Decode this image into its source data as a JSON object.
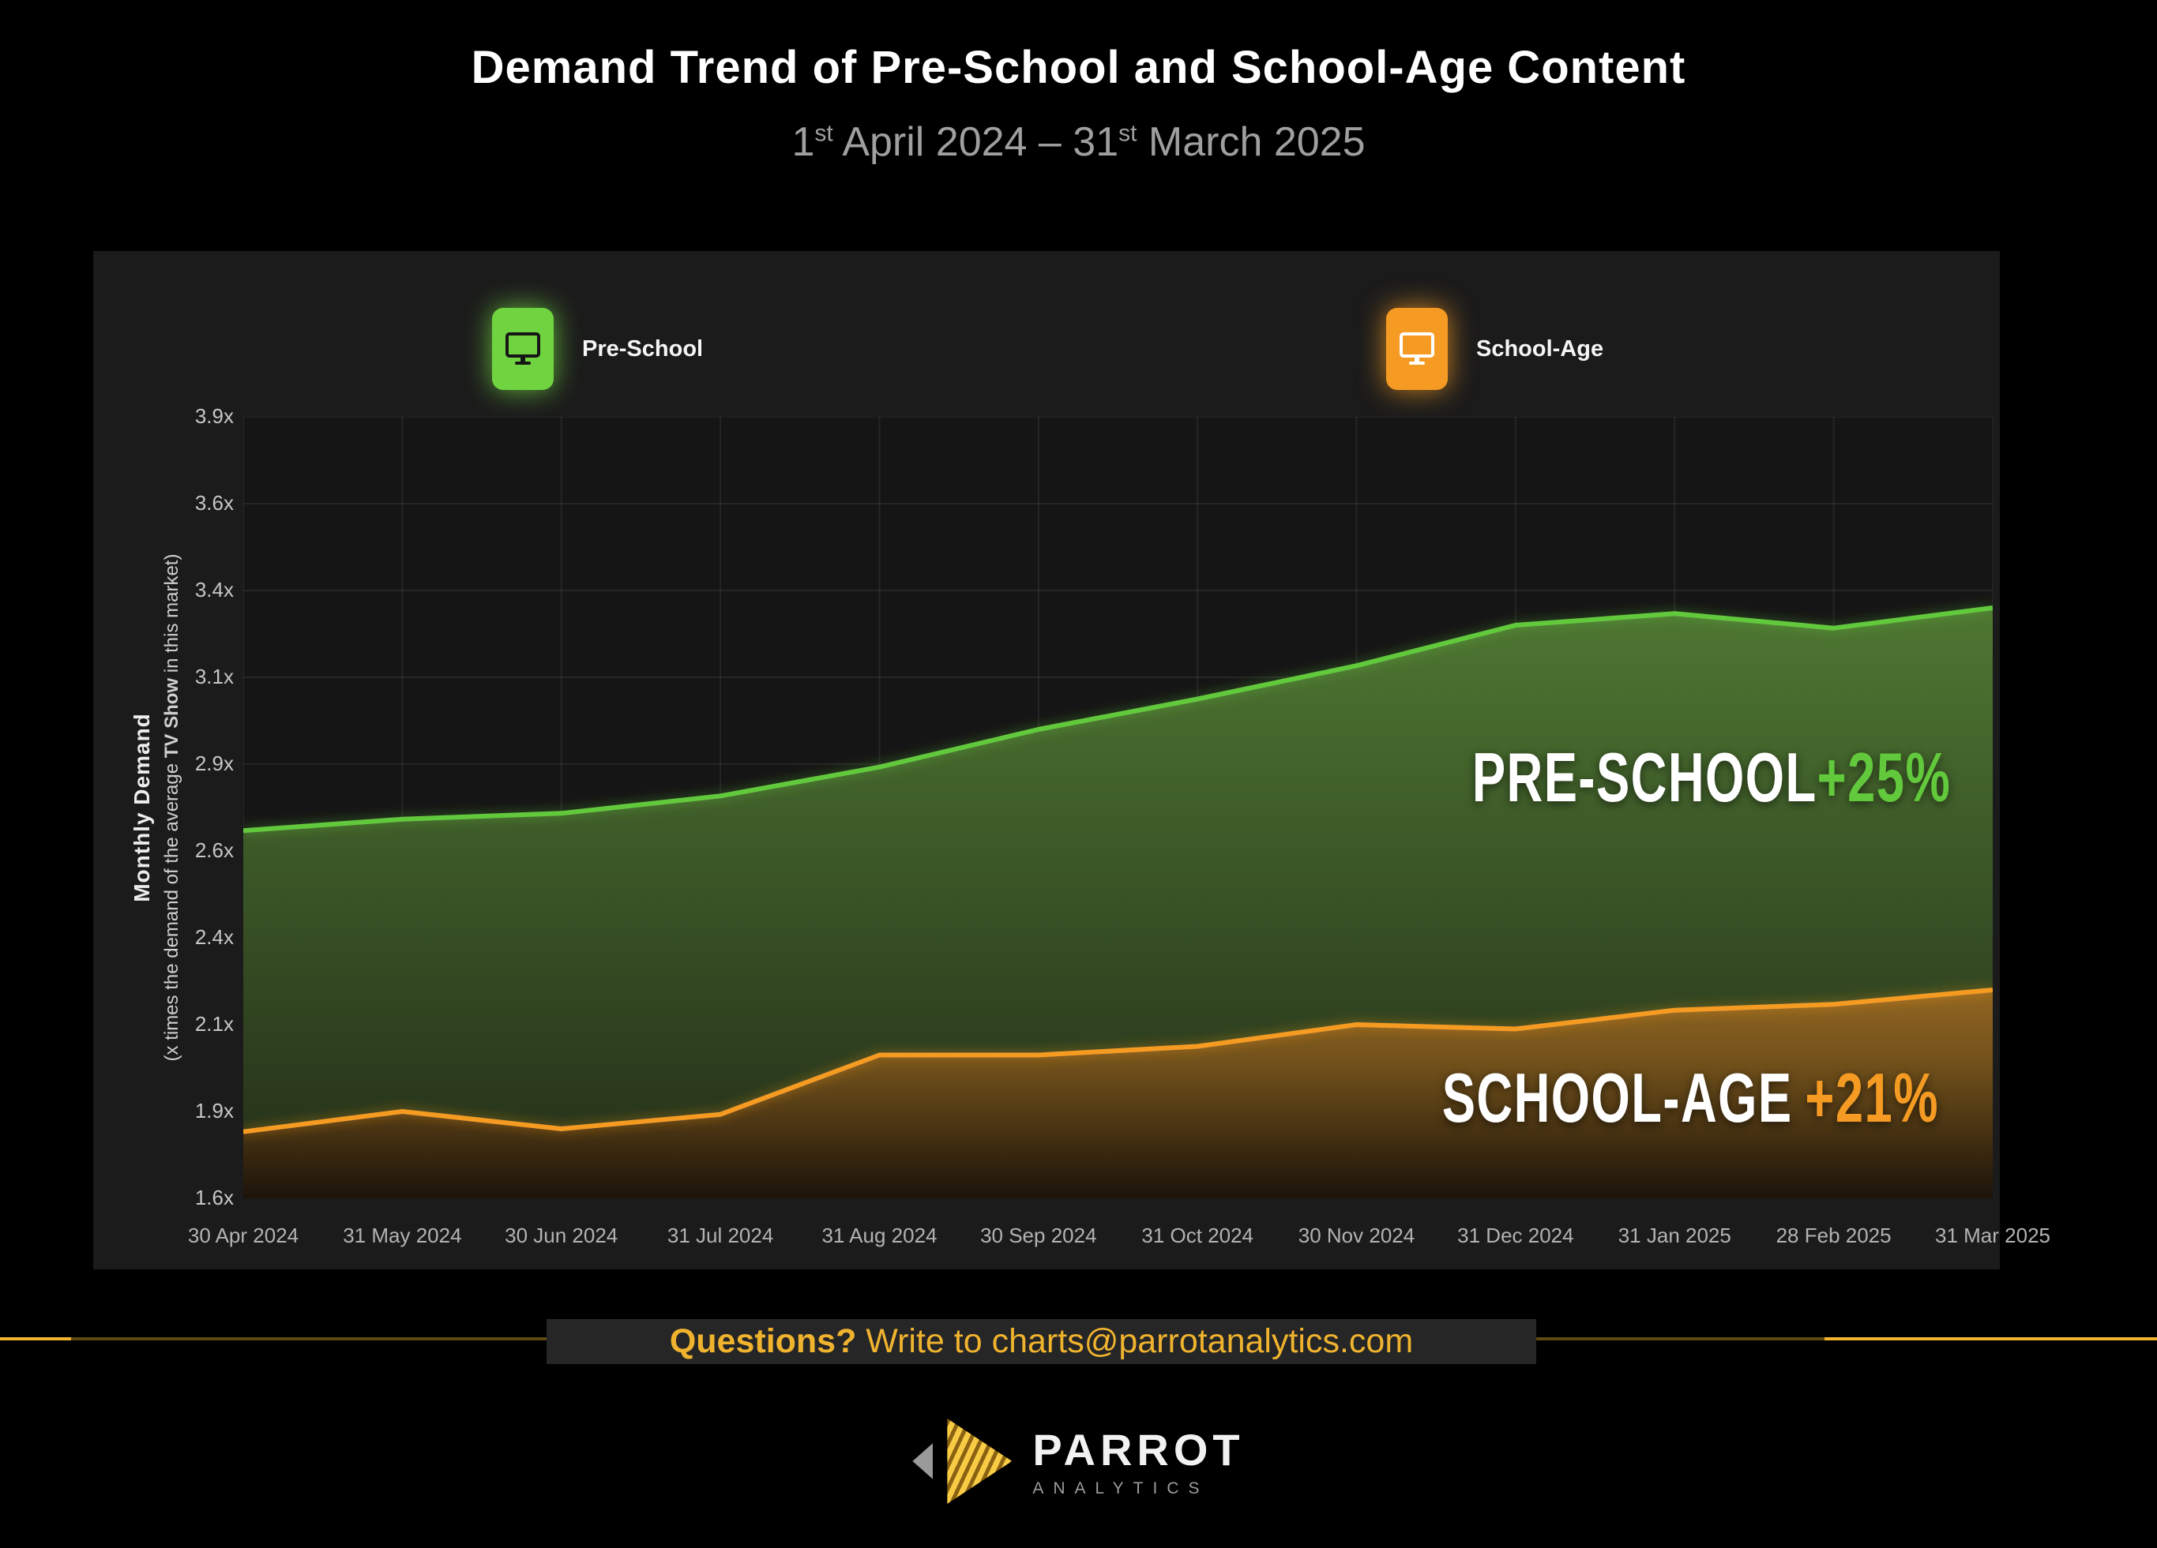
{
  "header": {
    "title": "Demand Trend  of Pre-School and School-Age Content",
    "subtitle_parts": {
      "p1": "1",
      "sup1": "st",
      "p2": " April 2024 – 31",
      "sup2": "st",
      "p3": " March 2025"
    }
  },
  "legend": [
    {
      "label": "Pre-School",
      "color": "#6fd440",
      "icon": "tv-card-icon"
    },
    {
      "label": "School-Age",
      "color": "#f59b23",
      "icon": "tv-card-icon"
    }
  ],
  "y_axis_title": {
    "line1": "Monthly Demand",
    "line2_pre": "(x times the demand of the average ",
    "line2_bold": "TV Show",
    "line2_post": " in this market)"
  },
  "annotations": {
    "pre_school": {
      "label": "PRE-SCHOOL",
      "delta": "+25%",
      "label_color": "#ffffff",
      "delta_color": "#62c93c"
    },
    "school_age": {
      "label": "SCHOOL-AGE",
      "delta": "+21%",
      "label_color": "#ffffff",
      "delta_color": "#f59b23"
    }
  },
  "footer": {
    "prompt_bold": "Questions?",
    "prompt_rest": " Write to charts@parrotanalytics.com",
    "text_color": "#f0b32e",
    "line_color": "#5c4813",
    "line_bright_color": "#f3b42d"
  },
  "logo": {
    "brand": "PARROT",
    "sub_brand": "ANALYTICS"
  },
  "chart_data": {
    "type": "area",
    "title": "Demand Trend of Pre-School and School-Age Content",
    "date_range": "1st April 2024 – 31st March 2025",
    "x_labels": [
      "30 Apr 2024",
      "31 May 2024",
      "30 Jun 2024",
      "31 Jul 2024",
      "31 Aug 2024",
      "30 Sep 2024",
      "31 Oct 2024",
      "30 Nov 2024",
      "31 Dec 2024",
      "31 Jan 2025",
      "28 Feb 2025",
      "31 Mar 2025"
    ],
    "y_axis": {
      "tick_labels": [
        "3.9x",
        "3.6x",
        "3.4x",
        "3.1x",
        "2.9x",
        "2.6x",
        "2.4x",
        "2.1x",
        "1.9x",
        "1.6x"
      ],
      "tick_values": [
        3.9,
        3.6,
        3.4,
        3.1,
        2.9,
        2.6,
        2.4,
        2.1,
        1.9,
        1.6
      ],
      "unit": "x",
      "evenly_spaced_gridlines": true
    },
    "ylabel": "Monthly Demand (x times the demand of the average TV Show in this market)",
    "grid": true,
    "legend_position": "top",
    "series": [
      {
        "name": "Pre-School",
        "color": "#62c93c",
        "area_gradient": [
          "#507b33",
          "#3a5426",
          "#232c18"
        ],
        "change_label": "+25%",
        "values": [
          2.67,
          2.71,
          2.73,
          2.79,
          2.89,
          2.98,
          3.05,
          3.14,
          3.28,
          3.32,
          3.27,
          3.34
        ]
      },
      {
        "name": "School-Age",
        "color": "#f59b23",
        "area_gradient": [
          "#aa7627",
          "#6f4f1a",
          "#1c130a"
        ],
        "change_label": "+21%",
        "values": [
          1.83,
          1.9,
          1.84,
          1.89,
          2.03,
          2.03,
          2.05,
          2.1,
          2.09,
          2.15,
          2.17,
          2.22
        ]
      }
    ]
  }
}
